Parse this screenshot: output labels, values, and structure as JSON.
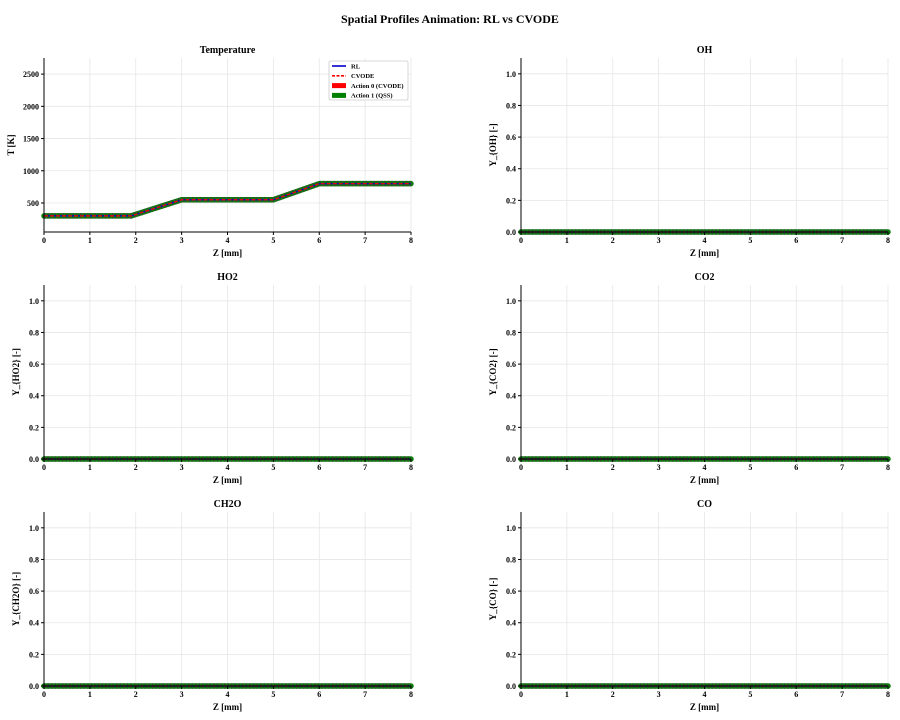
{
  "title": "Spatial Profiles Animation: RL vs CVODE",
  "legend": {
    "entries": [
      {
        "label": "RL",
        "color": "#0000cc",
        "style": "solid-line"
      },
      {
        "label": "CVODE",
        "color": "#ff0000",
        "style": "dashed-line"
      },
      {
        "label": "Action 0 (CVODE)",
        "color": "#ff0000",
        "style": "patch"
      },
      {
        "label": "Action 1 (QSS)",
        "color": "#008000",
        "style": "patch"
      }
    ],
    "placement": "upper-right of Temperature panel"
  },
  "chart_data": [
    {
      "id": "temperature",
      "type": "line",
      "title": "Temperature",
      "xlabel": "Z [mm]",
      "ylabel": "T [K]",
      "xlim": [
        0,
        8
      ],
      "ylim": [
        50,
        2750
      ],
      "xticks": [
        0,
        1,
        2,
        3,
        4,
        5,
        6,
        7,
        8
      ],
      "yticks": [
        500,
        1000,
        1500,
        2000,
        2500
      ],
      "tick_labels_x": [
        "0",
        "1",
        "2",
        "3",
        "4",
        "5",
        "6",
        "7",
        "8"
      ],
      "tick_labels_y": [
        "500",
        "1000",
        "1500",
        "2000",
        "2500"
      ],
      "grid": true,
      "series": [
        {
          "name": "RL",
          "x": [
            0,
            1.9,
            3,
            5,
            6,
            8
          ],
          "y": [
            300,
            300,
            550,
            550,
            800,
            800
          ]
        },
        {
          "name": "CVODE",
          "x": [
            0,
            1.9,
            3,
            5,
            6,
            8
          ],
          "y": [
            300,
            300,
            550,
            550,
            800,
            800
          ]
        }
      ],
      "action_markers": {
        "name": "Action 1 (QSS)",
        "x": [
          0,
          1.9,
          3,
          5,
          6,
          8
        ],
        "y": [
          300,
          300,
          550,
          550,
          800,
          800
        ]
      }
    },
    {
      "id": "oh",
      "type": "line",
      "title": "OH",
      "xlabel": "Z [mm]",
      "ylabel": "Y_{OH} [-]",
      "xlim": [
        0,
        8
      ],
      "ylim": [
        0,
        1.1
      ],
      "xticks": [
        0,
        1,
        2,
        3,
        4,
        5,
        6,
        7,
        8
      ],
      "yticks": [
        0.0,
        0.2,
        0.4,
        0.6,
        0.8,
        1.0
      ],
      "tick_labels_x": [
        "0",
        "1",
        "2",
        "3",
        "4",
        "5",
        "6",
        "7",
        "8"
      ],
      "tick_labels_y": [
        "0.0",
        "0.2",
        "0.4",
        "0.6",
        "0.8",
        "1.0"
      ],
      "grid": true,
      "series": [
        {
          "name": "RL",
          "x": [
            0,
            8
          ],
          "y": [
            0,
            0
          ]
        },
        {
          "name": "CVODE",
          "x": [
            0,
            8
          ],
          "y": [
            0,
            0
          ]
        }
      ],
      "action_markers": {
        "name": "Action 1 (QSS)",
        "x": [
          0,
          8
        ],
        "y": [
          0,
          0
        ]
      }
    },
    {
      "id": "ho2",
      "type": "line",
      "title": "HO2",
      "xlabel": "Z [mm]",
      "ylabel": "Y_{HO2} [-]",
      "xlim": [
        0,
        8
      ],
      "ylim": [
        0,
        1.1
      ],
      "xticks": [
        0,
        1,
        2,
        3,
        4,
        5,
        6,
        7,
        8
      ],
      "yticks": [
        0.0,
        0.2,
        0.4,
        0.6,
        0.8,
        1.0
      ],
      "tick_labels_x": [
        "0",
        "1",
        "2",
        "3",
        "4",
        "5",
        "6",
        "7",
        "8"
      ],
      "tick_labels_y": [
        "0.0",
        "0.2",
        "0.4",
        "0.6",
        "0.8",
        "1.0"
      ],
      "grid": true,
      "series": [
        {
          "name": "RL",
          "x": [
            0,
            8
          ],
          "y": [
            0,
            0
          ]
        },
        {
          "name": "CVODE",
          "x": [
            0,
            8
          ],
          "y": [
            0,
            0
          ]
        }
      ],
      "action_markers": {
        "name": "Action 1 (QSS)",
        "x": [
          0,
          8
        ],
        "y": [
          0,
          0
        ]
      }
    },
    {
      "id": "co2",
      "type": "line",
      "title": "CO2",
      "xlabel": "Z [mm]",
      "ylabel": "Y_{CO2} [-]",
      "xlim": [
        0,
        8
      ],
      "ylim": [
        0,
        1.1
      ],
      "xticks": [
        0,
        1,
        2,
        3,
        4,
        5,
        6,
        7,
        8
      ],
      "yticks": [
        0.0,
        0.2,
        0.4,
        0.6,
        0.8,
        1.0
      ],
      "tick_labels_x": [
        "0",
        "1",
        "2",
        "3",
        "4",
        "5",
        "6",
        "7",
        "8"
      ],
      "tick_labels_y": [
        "0.0",
        "0.2",
        "0.4",
        "0.6",
        "0.8",
        "1.0"
      ],
      "grid": true,
      "series": [
        {
          "name": "RL",
          "x": [
            0,
            8
          ],
          "y": [
            0,
            0
          ]
        },
        {
          "name": "CVODE",
          "x": [
            0,
            8
          ],
          "y": [
            0,
            0
          ]
        }
      ],
      "action_markers": {
        "name": "Action 1 (QSS)",
        "x": [
          0,
          8
        ],
        "y": [
          0,
          0
        ]
      }
    },
    {
      "id": "ch2o",
      "type": "line",
      "title": "CH2O",
      "xlabel": "Z [mm]",
      "ylabel": "Y_{CH2O} [-]",
      "xlim": [
        0,
        8
      ],
      "ylim": [
        0,
        1.1
      ],
      "xticks": [
        0,
        1,
        2,
        3,
        4,
        5,
        6,
        7,
        8
      ],
      "yticks": [
        0.0,
        0.2,
        0.4,
        0.6,
        0.8,
        1.0
      ],
      "tick_labels_x": [
        "0",
        "1",
        "2",
        "3",
        "4",
        "5",
        "6",
        "7",
        "8"
      ],
      "tick_labels_y": [
        "0.0",
        "0.2",
        "0.4",
        "0.6",
        "0.8",
        "1.0"
      ],
      "grid": true,
      "series": [
        {
          "name": "RL",
          "x": [
            0,
            8
          ],
          "y": [
            0,
            0
          ]
        },
        {
          "name": "CVODE",
          "x": [
            0,
            8
          ],
          "y": [
            0,
            0
          ]
        }
      ],
      "action_markers": {
        "name": "Action 1 (QSS)",
        "x": [
          0,
          8
        ],
        "y": [
          0,
          0
        ]
      }
    },
    {
      "id": "co",
      "type": "line",
      "title": "CO",
      "xlabel": "Z [mm]",
      "ylabel": "Y_{CO} [-]",
      "xlim": [
        0,
        8
      ],
      "ylim": [
        0,
        1.1
      ],
      "xticks": [
        0,
        1,
        2,
        3,
        4,
        5,
        6,
        7,
        8
      ],
      "yticks": [
        0.0,
        0.2,
        0.4,
        0.6,
        0.8,
        1.0
      ],
      "tick_labels_x": [
        "0",
        "1",
        "2",
        "3",
        "4",
        "5",
        "6",
        "7",
        "8"
      ],
      "tick_labels_y": [
        "0.0",
        "0.2",
        "0.4",
        "0.6",
        "0.8",
        "1.0"
      ],
      "grid": true,
      "series": [
        {
          "name": "RL",
          "x": [
            0,
            8
          ],
          "y": [
            0,
            0
          ]
        },
        {
          "name": "CVODE",
          "x": [
            0,
            8
          ],
          "y": [
            0,
            0
          ]
        }
      ],
      "action_markers": {
        "name": "Action 1 (QSS)",
        "x": [
          0,
          8
        ],
        "y": [
          0,
          0
        ]
      }
    }
  ]
}
